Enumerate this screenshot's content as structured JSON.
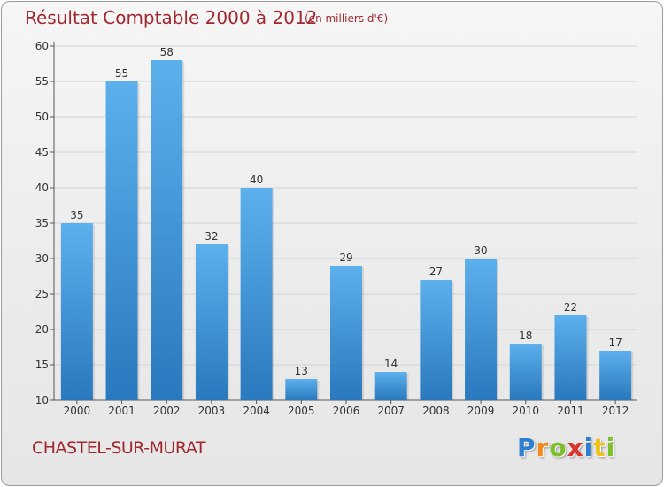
{
  "chart_data": {
    "type": "bar",
    "title": "Résultat Comptable 2000 à 2012",
    "subtitle": "(en milliers d'€)",
    "categories": [
      "2000",
      "2001",
      "2002",
      "2003",
      "2004",
      "2005",
      "2006",
      "2007",
      "2008",
      "2009",
      "2010",
      "2011",
      "2012"
    ],
    "values": [
      35,
      55,
      58,
      32,
      40,
      13,
      29,
      14,
      27,
      30,
      18,
      22,
      17
    ],
    "ylim": [
      10,
      60
    ],
    "yticks": [
      10,
      15,
      20,
      25,
      30,
      35,
      40,
      45,
      50,
      55,
      60
    ],
    "grid": true,
    "colors": {
      "bar_top": "#5cb0ec",
      "bar_bottom": "#2a78bd",
      "grid": "#d2d2d2",
      "text": "#333333",
      "title": "#a0282e"
    }
  },
  "footer": {
    "commune": "CHASTEL-SUR-MURAT",
    "logo": {
      "text": "Proxiti",
      "letters": [
        {
          "ch": "P",
          "color": "#2f7fd0"
        },
        {
          "ch": "r",
          "color": "#f08a1c"
        },
        {
          "ch": "o",
          "color": "#7cbf2a"
        },
        {
          "ch": "x",
          "color": "#d8342c"
        },
        {
          "ch": "i",
          "color": "#2f7fd0"
        },
        {
          "ch": "t",
          "color": "#f0c21c"
        },
        {
          "ch": "i",
          "color": "#7cbf2a"
        }
      ]
    }
  }
}
